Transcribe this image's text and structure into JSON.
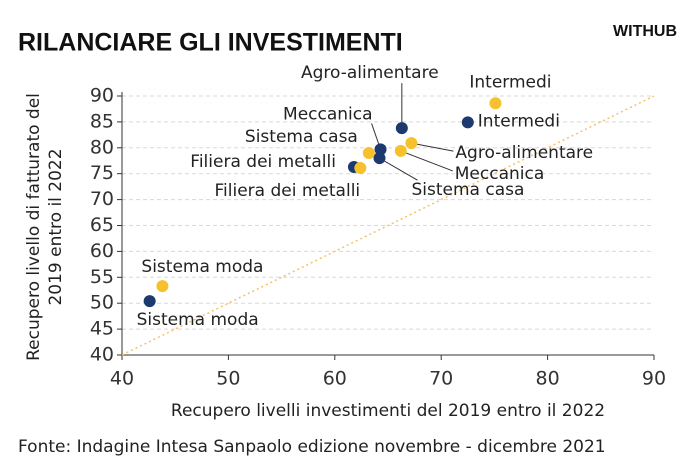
{
  "chart_data": {
    "type": "scatter",
    "title": "RILANCIARE GLI INVESTIMENTI",
    "brand": "WITHUB",
    "xlabel": "Recupero livelli investimenti del 2019 entro il 2022",
    "ylabel": [
      "Recupero livello di fatturato del",
      "2019 entro il 2022"
    ],
    "source": "Fonte: Indagine Intesa Sanpaolo edizione novembre - dicembre 2021",
    "xlim": [
      40,
      90
    ],
    "xticks": [
      40,
      50,
      60,
      70,
      80,
      90
    ],
    "ylim": [
      40,
      90
    ],
    "yticks": [
      40,
      45,
      50,
      55,
      60,
      65,
      70,
      75,
      80,
      85,
      90
    ],
    "grid": true,
    "identity_line": true,
    "series": [
      {
        "color": "#1d3a6e",
        "x": [
          42.6,
          61.8,
          64.2,
          64.3,
          66.3,
          72.5
        ],
        "values": [
          50.4,
          76.3,
          78.0,
          79.7,
          83.8,
          84.9
        ],
        "labels": [
          "Sistema moda",
          "Filiera dei metalli",
          "Sistema casa",
          "Meccanica",
          "Agro-alimentare",
          "Intermedi"
        ]
      },
      {
        "color": "#f7c12d",
        "x": [
          43.8,
          62.4,
          63.2,
          66.2,
          67.2,
          75.1
        ],
        "values": [
          53.3,
          76.1,
          79.0,
          79.4,
          80.9,
          88.6
        ],
        "labels": [
          "Sistema moda",
          "Filiera dei metalli",
          "Sistema casa",
          "Meccanica",
          "Agro-alimentare",
          "Intermedi"
        ]
      }
    ]
  }
}
